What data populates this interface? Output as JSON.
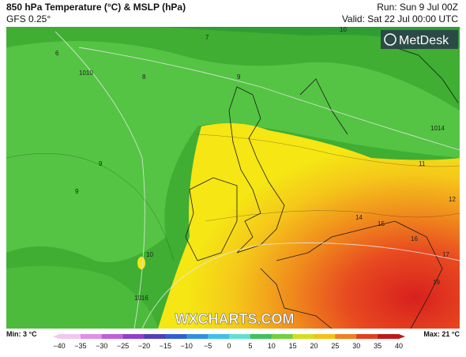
{
  "header": {
    "title": "850 hPa Temperature (°C) & MSLP (hPa)",
    "model": "GFS 0.25°",
    "run": "Run: Sun 9 Jul 00Z",
    "valid": "Valid: Sat 22 Jul 00:00 UTC"
  },
  "brand": "MetDesk",
  "watermark": "WXCHARTS.COM",
  "contour_labels": [
    "6",
    "7",
    "8",
    "9",
    "9",
    "9",
    "10",
    "10",
    "11",
    "12",
    "14",
    "15",
    "16",
    "17",
    "19",
    "1010",
    "1014",
    "1016"
  ],
  "legend": {
    "min": "Min: 3 °C",
    "max": "Max: 21 °C",
    "ticks": [
      "−40",
      "−35",
      "−30",
      "−25",
      "−20",
      "−15",
      "−10",
      "−5",
      "0",
      "5",
      "10",
      "15",
      "20",
      "25",
      "30",
      "35",
      "40"
    ]
  }
}
